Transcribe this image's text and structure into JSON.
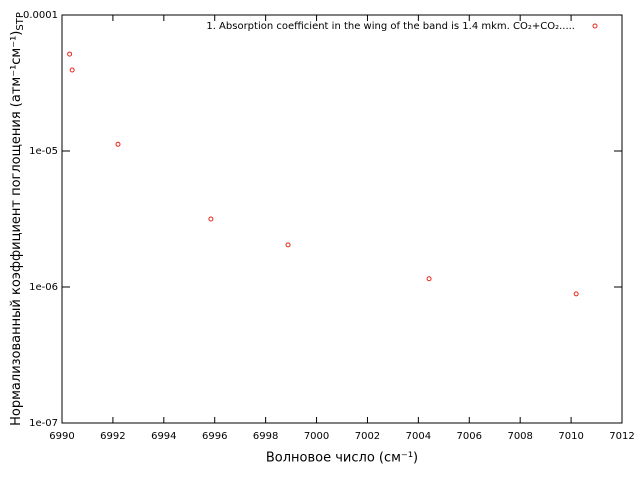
{
  "chart_data": {
    "type": "scatter",
    "xlabel": "Волновое число (см⁻¹)",
    "ylabel": [
      "Нормализованный коэффициент поглощения (атм⁻¹см⁻¹)",
      "STP"
    ],
    "series": [
      {
        "name": "1. Absorption coefficient in the wing of the band is 1.4 mkm. CO₂+CO₂.....",
        "color": "#e8261c",
        "x": [
          6990.3,
          6990.4,
          6992.2,
          6995.85,
          6998.88,
          7004.42,
          7010.2
        ],
        "values": [
          5.16e-05,
          3.94e-05,
          1.12e-05,
          3.16e-06,
          2.04e-06,
          1.15e-06,
          8.9e-07
        ]
      }
    ],
    "xlim": [
      6990,
      7012
    ],
    "xticks": [
      6990,
      6992,
      6994,
      6996,
      6998,
      7000,
      7002,
      7004,
      7006,
      7008,
      7010,
      7012
    ],
    "ylim": [
      1e-07,
      0.0001
    ],
    "ylog": true,
    "yticks": [
      {
        "value": 1e-07,
        "label": "1e-07"
      },
      {
        "value": 1e-06,
        "label": "1e-06"
      },
      {
        "value": 1e-05,
        "label": "1e-05"
      },
      {
        "value": 0.0001,
        "label": "0.0001"
      }
    ],
    "legend": "top-right"
  }
}
